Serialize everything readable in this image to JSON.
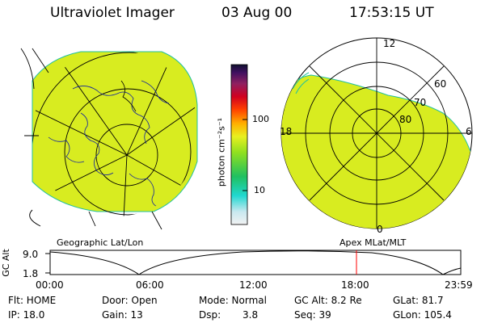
{
  "header": {
    "instrument": "Ultraviolet Imager",
    "date": "03 Aug 00",
    "time": "17:53:15 UT"
  },
  "left_map": {
    "label": "Geographic Lat/Lon"
  },
  "right_map": {
    "label": "Apex MLat/MLT",
    "mlt_labels": [
      "12",
      "18",
      "6",
      "0"
    ],
    "lat_labels": [
      "60",
      "70",
      "80"
    ]
  },
  "colorbar": {
    "unit": "photon cm⁻²s⁻¹",
    "ticks": [
      "100",
      "10"
    ]
  },
  "altitude_plot": {
    "ylabel": "GC Alt",
    "ticks_y": [
      "9.0",
      "1.8"
    ],
    "ticks_x": [
      "00:00",
      "06:00",
      "12:00",
      "18:00",
      "23:59"
    ],
    "marker_time": "17:53"
  },
  "footer": {
    "flt": "Flt: HOME",
    "ip": "IP: 18.0",
    "door": "Door: Open",
    "gain": "Gain: 13",
    "mode": "Mode: Normal",
    "dsp_label": "Dsp:",
    "dsp_value": "3.8",
    "gcalt": "GC Alt: 8.2 Re",
    "seq": "Seq: 39",
    "glat": "GLat: 81.7",
    "glon": "GLon: 105.4"
  },
  "colors": {
    "fill": "#d8ec20",
    "marker": "#ff0000"
  }
}
